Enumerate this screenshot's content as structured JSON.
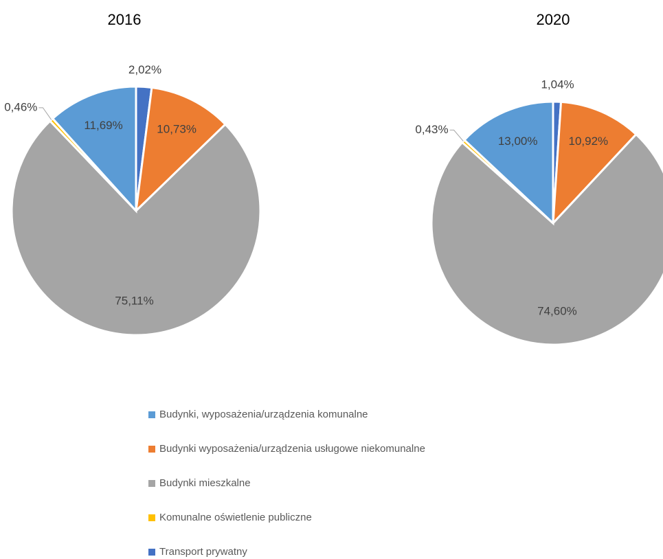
{
  "chart_data": {
    "type": "pie",
    "categories": [
      "Budynki, wyposażenia/urządzenia komunalne",
      "Budynki wyposażenia/urządzenia usługowe niekomunalne",
      "Budynki mieszkalne",
      "Komunalne oświetlenie publiczne",
      "Transport prywatny"
    ],
    "colors": [
      "#5b9bd5",
      "#ed7d31",
      "#a5a5a5",
      "#ffc000",
      "#4472c4"
    ],
    "series": [
      {
        "name": "2016",
        "values": [
          11.69,
          10.73,
          75.11,
          0.46,
          2.02
        ],
        "value_labels": [
          "11,69%",
          "10,73%",
          "75,11%",
          "0,46%",
          "2,02%"
        ]
      },
      {
        "name": "2020",
        "values": [
          13.0,
          10.92,
          74.6,
          0.43,
          1.04
        ],
        "value_labels": [
          "13,00%",
          "10,92%",
          "74,60%",
          "0,43%",
          "1,04%"
        ]
      }
    ]
  }
}
